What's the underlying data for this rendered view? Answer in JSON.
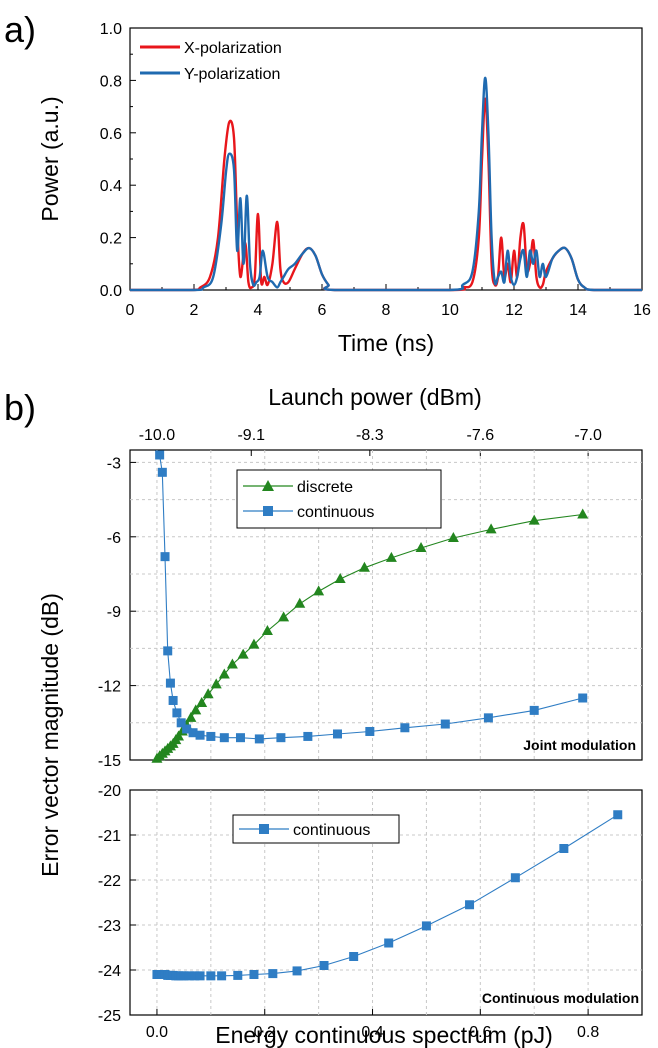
{
  "colors": {
    "red": "#e8161b",
    "blue": "#1f6ab0",
    "green": "#23861f",
    "cblue": "#2f7dc4",
    "grid": "#c8c8c8"
  },
  "panel_a": {
    "label": "a)",
    "xlabel": "Time (ns)",
    "ylabel": "Power (a.u.)",
    "xticks": [
      "0",
      "2",
      "4",
      "6",
      "8",
      "10",
      "12",
      "14",
      "16"
    ],
    "yticks": [
      "0.0",
      "0.2",
      "0.4",
      "0.6",
      "0.8",
      "1.0"
    ],
    "legend": [
      "X-polarization",
      "Y-polarization"
    ]
  },
  "panel_b": {
    "label": "b)",
    "top_xlabel": "Launch power (dBm)",
    "top_xticks": [
      "-10.0",
      "-9.1",
      "-8.3",
      "-7.6",
      "-7.0"
    ],
    "xlabel": "Energy continuous spectrum (pJ)",
    "ylabel": "Error vector magnitude (dB)",
    "xticks": [
      "0.0",
      "0.2",
      "0.4",
      "0.6",
      "0.8"
    ],
    "upper_yticks": [
      "-3",
      "-6",
      "-9",
      "-12",
      "-15"
    ],
    "lower_yticks": [
      "-20",
      "-21",
      "-22",
      "-23",
      "-24",
      "-25"
    ],
    "upper_legend": [
      "discrete",
      "continuous"
    ],
    "lower_legend": [
      "continuous"
    ],
    "upper_note": "Joint modulation",
    "lower_note": "Continuous modulation"
  },
  "chart_data": [
    {
      "type": "line",
      "xlabel": "Time (ns)",
      "ylabel": "Power (a.u.)",
      "xlim": [
        0,
        16
      ],
      "ylim": [
        0,
        1.0
      ],
      "series": [
        {
          "name": "X-polarization",
          "x": [
            0,
            1.9,
            2.2,
            2.5,
            2.75,
            2.95,
            3.1,
            3.25,
            3.35,
            3.45,
            3.6,
            3.7,
            3.8,
            3.9,
            4.0,
            4.1,
            4.2,
            4.3,
            4.45,
            4.6,
            4.7,
            4.8,
            4.95,
            5.15,
            5.4,
            5.6,
            5.8,
            6.0,
            6.2,
            6.4,
            10.1,
            10.4,
            10.7,
            10.9,
            11.0,
            11.1,
            11.2,
            11.3,
            11.4,
            11.5,
            11.6,
            11.7,
            11.8,
            11.9,
            12.0,
            12.1,
            12.2,
            12.3,
            12.4,
            12.5,
            12.6,
            12.7,
            12.8,
            12.9,
            13.0,
            13.2,
            13.4,
            13.6,
            13.8,
            14.0,
            14.2,
            14.5,
            16
          ],
          "y": [
            0,
            0,
            0.01,
            0.05,
            0.2,
            0.5,
            0.64,
            0.58,
            0.25,
            0.05,
            0.18,
            0.03,
            0.01,
            0.05,
            0.29,
            0.03,
            0.05,
            0.02,
            0.1,
            0.26,
            0.08,
            0.03,
            0.03,
            0.08,
            0.14,
            0.16,
            0.13,
            0.06,
            0.02,
            0,
            0,
            0.01,
            0.03,
            0.2,
            0.5,
            0.73,
            0.5,
            0.1,
            0.02,
            0.05,
            0.2,
            0.05,
            0.1,
            0.03,
            0.15,
            0.05,
            0.2,
            0.25,
            0.08,
            0.1,
            0.19,
            0.05,
            0.01,
            0.02,
            0.07,
            0.12,
            0.15,
            0.16,
            0.12,
            0.04,
            0.01,
            0,
            0
          ]
        },
        {
          "name": "Y-polarization",
          "x": [
            0,
            2.0,
            2.3,
            2.6,
            2.85,
            3.0,
            3.1,
            3.25,
            3.35,
            3.45,
            3.55,
            3.65,
            3.75,
            3.85,
            3.95,
            4.05,
            4.15,
            4.3,
            4.45,
            4.6,
            4.7,
            4.8,
            4.95,
            5.15,
            5.4,
            5.6,
            5.8,
            6.0,
            6.2,
            6.4,
            10.0,
            10.4,
            10.7,
            10.9,
            11.0,
            11.1,
            11.2,
            11.3,
            11.4,
            11.5,
            11.6,
            11.7,
            11.8,
            11.9,
            12.0,
            12.1,
            12.2,
            12.3,
            12.4,
            12.5,
            12.6,
            12.7,
            12.8,
            12.9,
            13.0,
            13.2,
            13.4,
            13.6,
            13.8,
            14.0,
            14.2,
            14.5,
            16
          ],
          "y": [
            0,
            0,
            0.01,
            0.05,
            0.25,
            0.45,
            0.52,
            0.46,
            0.15,
            0.35,
            0.1,
            0.36,
            0.1,
            0.02,
            0.03,
            0.05,
            0.15,
            0.05,
            0.03,
            0.01,
            0.03,
            0.05,
            0.08,
            0.1,
            0.14,
            0.16,
            0.13,
            0.06,
            0.02,
            0,
            0,
            0.02,
            0.07,
            0.3,
            0.6,
            0.81,
            0.6,
            0.2,
            0.03,
            0.05,
            0.07,
            0.03,
            0.15,
            0.05,
            0.02,
            0.05,
            0.12,
            0.15,
            0.05,
            0.15,
            0.1,
            0.15,
            0.05,
            0.1,
            0.05,
            0.12,
            0.15,
            0.16,
            0.12,
            0.04,
            0.01,
            0,
            0
          ]
        }
      ]
    },
    {
      "type": "line",
      "title": "Joint modulation",
      "xlabel": "Energy continuous spectrum (pJ)",
      "ylabel": "Error vector magnitude (dB)",
      "top_xlabel": "Launch power (dBm)",
      "xlim": [
        -0.05,
        0.9
      ],
      "ylim": [
        -15,
        -2.5
      ],
      "series": [
        {
          "name": "discrete",
          "marker": "triangle",
          "x": [
            0.0,
            0.005,
            0.01,
            0.015,
            0.02,
            0.025,
            0.03,
            0.035,
            0.04,
            0.047,
            0.055,
            0.063,
            0.072,
            0.083,
            0.095,
            0.11,
            0.125,
            0.14,
            0.16,
            0.18,
            0.205,
            0.235,
            0.265,
            0.3,
            0.34,
            0.385,
            0.435,
            0.49,
            0.55,
            0.62,
            0.7,
            0.79
          ],
          "y": [
            -14.95,
            -14.85,
            -14.75,
            -14.65,
            -14.55,
            -14.45,
            -14.35,
            -14.2,
            -14.05,
            -13.85,
            -13.6,
            -13.3,
            -13.0,
            -12.7,
            -12.35,
            -11.95,
            -11.55,
            -11.15,
            -10.75,
            -10.35,
            -9.8,
            -9.25,
            -8.7,
            -8.2,
            -7.7,
            -7.25,
            -6.85,
            -6.45,
            -6.05,
            -5.7,
            -5.35,
            -5.1
          ]
        },
        {
          "name": "continuous",
          "marker": "square",
          "x": [
            0.005,
            0.01,
            0.015,
            0.02,
            0.025,
            0.03,
            0.037,
            0.045,
            0.055,
            0.067,
            0.08,
            0.1,
            0.125,
            0.155,
            0.19,
            0.23,
            0.28,
            0.335,
            0.395,
            0.46,
            0.535,
            0.615,
            0.7,
            0.79
          ],
          "y": [
            -2.7,
            -3.4,
            -6.8,
            -10.6,
            -11.9,
            -12.6,
            -13.1,
            -13.5,
            -13.75,
            -13.9,
            -14.0,
            -14.05,
            -14.1,
            -14.1,
            -14.15,
            -14.1,
            -14.05,
            -13.95,
            -13.85,
            -13.7,
            -13.55,
            -13.3,
            -13.0,
            -12.5
          ]
        }
      ]
    },
    {
      "type": "line",
      "title": "Continuous modulation",
      "xlabel": "Energy continuous spectrum (pJ)",
      "ylabel": "Error vector magnitude (dB)",
      "xlim": [
        -0.05,
        0.9
      ],
      "ylim": [
        -25,
        -20
      ],
      "series": [
        {
          "name": "continuous",
          "marker": "square",
          "x": [
            0.0,
            0.005,
            0.01,
            0.015,
            0.02,
            0.025,
            0.03,
            0.035,
            0.04,
            0.045,
            0.05,
            0.06,
            0.07,
            0.08,
            0.1,
            0.12,
            0.15,
            0.18,
            0.215,
            0.26,
            0.31,
            0.365,
            0.43,
            0.5,
            0.58,
            0.665,
            0.755,
            0.855
          ],
          "y": [
            -24.1,
            -24.1,
            -24.1,
            -24.1,
            -24.12,
            -24.12,
            -24.12,
            -24.13,
            -24.13,
            -24.13,
            -24.13,
            -24.13,
            -24.13,
            -24.13,
            -24.13,
            -24.13,
            -24.12,
            -24.1,
            -24.08,
            -24.02,
            -23.9,
            -23.7,
            -23.4,
            -23.02,
            -22.55,
            -21.95,
            -21.3,
            -20.55
          ]
        }
      ]
    }
  ]
}
